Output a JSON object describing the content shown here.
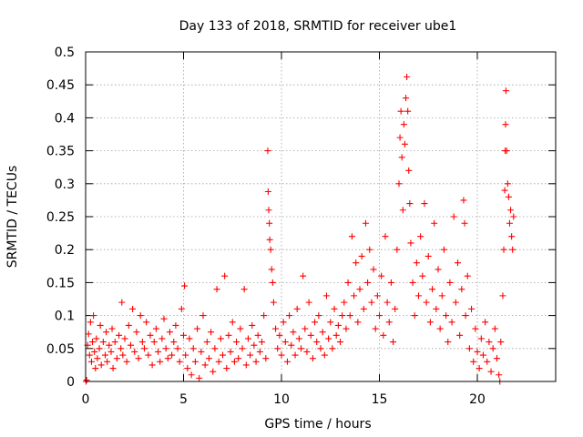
{
  "chart_data": {
    "type": "scatter",
    "title": "Day 133 of 2018, SRMTID for receiver ube1",
    "xlabel": "GPS time / hours",
    "ylabel": "SRMTID / TECUs",
    "xlim": [
      0,
      24
    ],
    "ylim": [
      0,
      0.5
    ],
    "xticks": [
      0,
      5,
      10,
      15,
      20
    ],
    "xtick_labels": [
      "0",
      "5",
      "10",
      "15",
      "20"
    ],
    "yticks": [
      0,
      0.05,
      0.1,
      0.15,
      0.2,
      0.25,
      0.3,
      0.35,
      0.4,
      0.45,
      0.5
    ],
    "ytick_labels": [
      "0",
      "0.05",
      "0.1",
      "0.15",
      "0.2",
      "0.25",
      "0.3",
      "0.35",
      "0.4",
      "0.45",
      "0.5"
    ],
    "grid": true,
    "marker": "+",
    "color": "#ff0000",
    "series": [
      {
        "name": "ube1",
        "points": [
          [
            0.02,
            0.0
          ],
          [
            0.05,
            0.002
          ],
          [
            0.1,
            0.055
          ],
          [
            0.15,
            0.072
          ],
          [
            0.2,
            0.04
          ],
          [
            0.25,
            0.09
          ],
          [
            0.3,
            0.03
          ],
          [
            0.35,
            0.06
          ],
          [
            0.4,
            0.1
          ],
          [
            0.45,
            0.045
          ],
          [
            0.5,
            0.02
          ],
          [
            0.55,
            0.065
          ],
          [
            0.6,
            0.035
          ],
          [
            0.7,
            0.05
          ],
          [
            0.75,
            0.085
          ],
          [
            0.8,
            0.025
          ],
          [
            0.9,
            0.06
          ],
          [
            1.0,
            0.04
          ],
          [
            1.05,
            0.075
          ],
          [
            1.1,
            0.03
          ],
          [
            1.2,
            0.055
          ],
          [
            1.3,
            0.045
          ],
          [
            1.35,
            0.08
          ],
          [
            1.4,
            0.02
          ],
          [
            1.5,
            0.06
          ],
          [
            1.6,
            0.035
          ],
          [
            1.7,
            0.07
          ],
          [
            1.8,
            0.05
          ],
          [
            1.85,
            0.12
          ],
          [
            1.9,
            0.04
          ],
          [
            2.0,
            0.065
          ],
          [
            2.1,
            0.03
          ],
          [
            2.2,
            0.085
          ],
          [
            2.3,
            0.055
          ],
          [
            2.4,
            0.11
          ],
          [
            2.5,
            0.045
          ],
          [
            2.6,
            0.075
          ],
          [
            2.7,
            0.035
          ],
          [
            2.8,
            0.1
          ],
          [
            2.9,
            0.06
          ],
          [
            3.0,
            0.05
          ],
          [
            3.1,
            0.09
          ],
          [
            3.2,
            0.04
          ],
          [
            3.3,
            0.07
          ],
          [
            3.4,
            0.025
          ],
          [
            3.5,
            0.06
          ],
          [
            3.6,
            0.08
          ],
          [
            3.7,
            0.045
          ],
          [
            3.8,
            0.03
          ],
          [
            3.9,
            0.065
          ],
          [
            4.0,
            0.095
          ],
          [
            4.1,
            0.05
          ],
          [
            4.2,
            0.035
          ],
          [
            4.3,
            0.075
          ],
          [
            4.4,
            0.04
          ],
          [
            4.5,
            0.06
          ],
          [
            4.6,
            0.085
          ],
          [
            4.7,
            0.05
          ],
          [
            4.8,
            0.03
          ],
          [
            4.9,
            0.11
          ],
          [
            5.0,
            0.07
          ],
          [
            5.05,
            0.145
          ],
          [
            5.1,
            0.04
          ],
          [
            5.2,
            0.02
          ],
          [
            5.3,
            0.065
          ],
          [
            5.4,
            0.01
          ],
          [
            5.5,
            0.05
          ],
          [
            5.6,
            0.03
          ],
          [
            5.7,
            0.08
          ],
          [
            5.8,
            0.005
          ],
          [
            5.9,
            0.045
          ],
          [
            6.0,
            0.1
          ],
          [
            6.1,
            0.025
          ],
          [
            6.2,
            0.06
          ],
          [
            6.3,
            0.035
          ],
          [
            6.4,
            0.075
          ],
          [
            6.5,
            0.015
          ],
          [
            6.6,
            0.05
          ],
          [
            6.7,
            0.14
          ],
          [
            6.8,
            0.03
          ],
          [
            6.9,
            0.065
          ],
          [
            7.0,
            0.04
          ],
          [
            7.1,
            0.16
          ],
          [
            7.2,
            0.02
          ],
          [
            7.3,
            0.07
          ],
          [
            7.4,
            0.045
          ],
          [
            7.5,
            0.09
          ],
          [
            7.6,
            0.03
          ],
          [
            7.7,
            0.06
          ],
          [
            7.8,
            0.035
          ],
          [
            7.9,
            0.08
          ],
          [
            8.0,
            0.05
          ],
          [
            8.1,
            0.14
          ],
          [
            8.2,
            0.025
          ],
          [
            8.3,
            0.065
          ],
          [
            8.4,
            0.04
          ],
          [
            8.5,
            0.085
          ],
          [
            8.6,
            0.055
          ],
          [
            8.7,
            0.03
          ],
          [
            8.8,
            0.07
          ],
          [
            8.9,
            0.045
          ],
          [
            9.0,
            0.06
          ],
          [
            9.1,
            0.1
          ],
          [
            9.2,
            0.035
          ],
          [
            9.3,
            0.35
          ],
          [
            9.32,
            0.288
          ],
          [
            9.35,
            0.26
          ],
          [
            9.38,
            0.24
          ],
          [
            9.4,
            0.215
          ],
          [
            9.45,
            0.2
          ],
          [
            9.5,
            0.17
          ],
          [
            9.55,
            0.15
          ],
          [
            9.6,
            0.12
          ],
          [
            9.7,
            0.08
          ],
          [
            9.8,
            0.05
          ],
          [
            9.9,
            0.07
          ],
          [
            10.0,
            0.04
          ],
          [
            10.1,
            0.09
          ],
          [
            10.2,
            0.06
          ],
          [
            10.3,
            0.03
          ],
          [
            10.4,
            0.1
          ],
          [
            10.5,
            0.055
          ],
          [
            10.6,
            0.075
          ],
          [
            10.7,
            0.04
          ],
          [
            10.8,
            0.11
          ],
          [
            10.9,
            0.065
          ],
          [
            11.0,
            0.05
          ],
          [
            11.1,
            0.16
          ],
          [
            11.2,
            0.08
          ],
          [
            11.3,
            0.045
          ],
          [
            11.4,
            0.12
          ],
          [
            11.5,
            0.07
          ],
          [
            11.6,
            0.035
          ],
          [
            11.7,
            0.09
          ],
          [
            11.8,
            0.06
          ],
          [
            11.9,
            0.1
          ],
          [
            12.0,
            0.05
          ],
          [
            12.1,
            0.075
          ],
          [
            12.2,
            0.04
          ],
          [
            12.3,
            0.13
          ],
          [
            12.4,
            0.065
          ],
          [
            12.5,
            0.09
          ],
          [
            12.6,
            0.05
          ],
          [
            12.7,
            0.11
          ],
          [
            12.8,
            0.07
          ],
          [
            12.9,
            0.085
          ],
          [
            13.0,
            0.06
          ],
          [
            13.1,
            0.1
          ],
          [
            13.2,
            0.12
          ],
          [
            13.3,
            0.08
          ],
          [
            13.4,
            0.15
          ],
          [
            13.5,
            0.1
          ],
          [
            13.6,
            0.22
          ],
          [
            13.7,
            0.13
          ],
          [
            13.8,
            0.18
          ],
          [
            13.9,
            0.09
          ],
          [
            14.0,
            0.14
          ],
          [
            14.1,
            0.19
          ],
          [
            14.2,
            0.11
          ],
          [
            14.3,
            0.24
          ],
          [
            14.4,
            0.15
          ],
          [
            14.5,
            0.2
          ],
          [
            14.6,
            0.12
          ],
          [
            14.7,
            0.17
          ],
          [
            14.8,
            0.08
          ],
          [
            14.9,
            0.13
          ],
          [
            15.0,
            0.1
          ],
          [
            15.1,
            0.16
          ],
          [
            15.2,
            0.07
          ],
          [
            15.3,
            0.22
          ],
          [
            15.4,
            0.12
          ],
          [
            15.5,
            0.09
          ],
          [
            15.6,
            0.15
          ],
          [
            15.7,
            0.06
          ],
          [
            15.8,
            0.11
          ],
          [
            15.9,
            0.2
          ],
          [
            16.0,
            0.3
          ],
          [
            16.05,
            0.37
          ],
          [
            16.1,
            0.41
          ],
          [
            16.15,
            0.34
          ],
          [
            16.2,
            0.26
          ],
          [
            16.25,
            0.39
          ],
          [
            16.3,
            0.36
          ],
          [
            16.35,
            0.43
          ],
          [
            16.4,
            0.462
          ],
          [
            16.45,
            0.41
          ],
          [
            16.5,
            0.32
          ],
          [
            16.55,
            0.27
          ],
          [
            16.6,
            0.21
          ],
          [
            16.7,
            0.15
          ],
          [
            16.8,
            0.1
          ],
          [
            16.9,
            0.18
          ],
          [
            17.0,
            0.13
          ],
          [
            17.1,
            0.22
          ],
          [
            17.2,
            0.16
          ],
          [
            17.3,
            0.27
          ],
          [
            17.4,
            0.12
          ],
          [
            17.5,
            0.19
          ],
          [
            17.6,
            0.09
          ],
          [
            17.7,
            0.14
          ],
          [
            17.8,
            0.24
          ],
          [
            17.9,
            0.11
          ],
          [
            18.0,
            0.17
          ],
          [
            18.1,
            0.08
          ],
          [
            18.2,
            0.13
          ],
          [
            18.3,
            0.2
          ],
          [
            18.4,
            0.1
          ],
          [
            18.5,
            0.06
          ],
          [
            18.6,
            0.15
          ],
          [
            18.7,
            0.09
          ],
          [
            18.8,
            0.25
          ],
          [
            18.9,
            0.12
          ],
          [
            19.0,
            0.18
          ],
          [
            19.1,
            0.07
          ],
          [
            19.2,
            0.14
          ],
          [
            19.3,
            0.275
          ],
          [
            19.35,
            0.24
          ],
          [
            19.4,
            0.1
          ],
          [
            19.5,
            0.16
          ],
          [
            19.6,
            0.05
          ],
          [
            19.7,
            0.11
          ],
          [
            19.8,
            0.03
          ],
          [
            19.9,
            0.08
          ],
          [
            20.0,
            0.045
          ],
          [
            20.1,
            0.02
          ],
          [
            20.2,
            0.065
          ],
          [
            20.3,
            0.04
          ],
          [
            20.4,
            0.09
          ],
          [
            20.5,
            0.03
          ],
          [
            20.6,
            0.06
          ],
          [
            20.7,
            0.015
          ],
          [
            20.8,
            0.05
          ],
          [
            20.9,
            0.08
          ],
          [
            21.0,
            0.035
          ],
          [
            21.1,
            0.01
          ],
          [
            21.15,
            0.0
          ],
          [
            21.2,
            0.06
          ],
          [
            21.3,
            0.13
          ],
          [
            21.35,
            0.2
          ],
          [
            21.4,
            0.29
          ],
          [
            21.42,
            0.35
          ],
          [
            21.44,
            0.39
          ],
          [
            21.46,
            0.441
          ],
          [
            21.5,
            0.35
          ],
          [
            21.55,
            0.3
          ],
          [
            21.6,
            0.28
          ],
          [
            21.65,
            0.24
          ],
          [
            21.7,
            0.26
          ],
          [
            21.75,
            0.22
          ],
          [
            21.8,
            0.2
          ],
          [
            21.85,
            0.25
          ]
        ]
      }
    ]
  }
}
